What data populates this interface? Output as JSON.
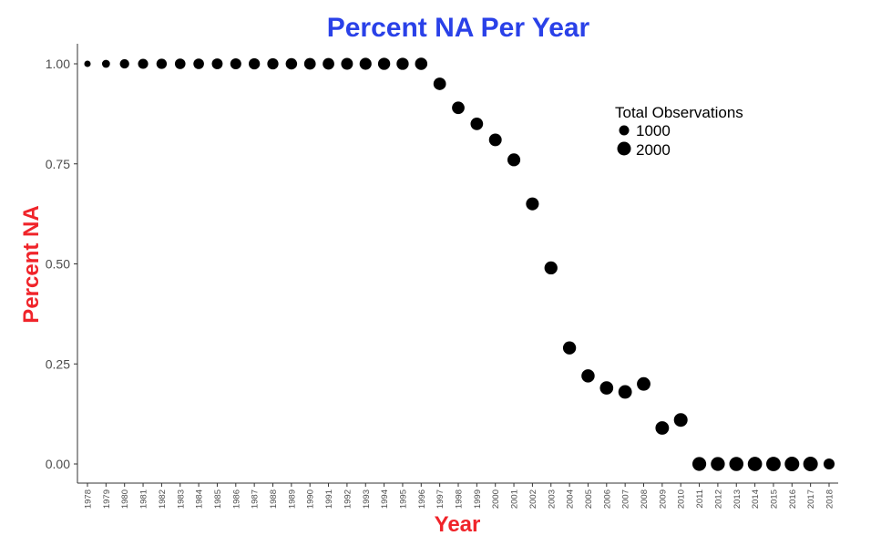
{
  "chart_data": {
    "type": "scatter",
    "title": "Percent NA Per Year",
    "xlabel": "Year",
    "ylabel": "Percent NA",
    "ylim": [
      0,
      1
    ],
    "yticks": [
      "0.00",
      "0.25",
      "0.50",
      "0.75",
      "1.00"
    ],
    "grid": false,
    "legend_position": "top-right",
    "colors": {
      "title": "#2a41e8",
      "axis_title": "#f0242a",
      "points": "#000000",
      "axis": "#333333"
    },
    "legend": {
      "title": "Total Observations",
      "entries": [
        {
          "label": "1000",
          "size": 1000
        },
        {
          "label": "2000",
          "size": 2000
        }
      ]
    },
    "x": [
      "1978",
      "1979",
      "1980",
      "1981",
      "1982",
      "1983",
      "1984",
      "1985",
      "1986",
      "1987",
      "1988",
      "1989",
      "1990",
      "1991",
      "1992",
      "1993",
      "1994",
      "1995",
      "1996",
      "1997",
      "1998",
      "1999",
      "2000",
      "2001",
      "2002",
      "2003",
      "2004",
      "2005",
      "2006",
      "2007",
      "2008",
      "2009",
      "2010",
      "2011",
      "2012",
      "2013",
      "2014",
      "2015",
      "2016",
      "2017",
      "2018"
    ],
    "y": [
      1.0,
      1.0,
      1.0,
      1.0,
      1.0,
      1.0,
      1.0,
      1.0,
      1.0,
      1.0,
      1.0,
      1.0,
      1.0,
      1.0,
      1.0,
      1.0,
      1.0,
      1.0,
      1.0,
      0.95,
      0.89,
      0.85,
      0.81,
      0.76,
      0.65,
      0.49,
      0.29,
      0.22,
      0.19,
      0.18,
      0.2,
      0.09,
      0.11,
      0.0,
      0.0,
      0.0,
      0.0,
      0.0,
      0.0,
      0.0,
      0.0
    ],
    "total_observations": [
      200,
      400,
      650,
      800,
      850,
      900,
      900,
      950,
      1000,
      1050,
      1050,
      1100,
      1150,
      1150,
      1200,
      1250,
      1300,
      1300,
      1350,
      1400,
      1400,
      1400,
      1450,
      1500,
      1500,
      1550,
      1550,
      1600,
      1650,
      1700,
      1700,
      1700,
      1750,
      1800,
      1850,
      1900,
      1950,
      2000,
      2050,
      2050,
      1000
    ]
  }
}
